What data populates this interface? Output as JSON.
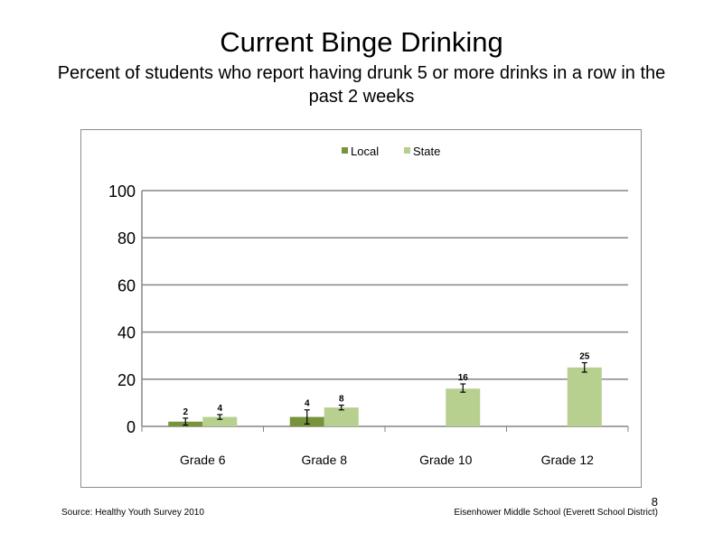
{
  "slide": {
    "title": "Current Binge Drinking",
    "subtitle": "Percent of students who report having drunk  5 or more drinks  in a row in the past 2 weeks",
    "source": "Source: Healthy  Youth Survey 2010",
    "footer": "Eisenhower Middle  School  (Everett School District)",
    "page_number": "8"
  },
  "colors": {
    "local": "#77933c",
    "state": "#b7cf8f",
    "grid": "#868686"
  },
  "chart_data": {
    "type": "bar",
    "categories": [
      "Grade 6",
      "Grade 8",
      "Grade 10",
      "Grade 12"
    ],
    "series": [
      {
        "name": "Local",
        "values": [
          2,
          4,
          null,
          null
        ],
        "labels": [
          "2",
          "4",
          "",
          ""
        ],
        "error_low": [
          0.5,
          1,
          null,
          null
        ],
        "error_high": [
          3.5,
          7,
          null,
          null
        ]
      },
      {
        "name": "State",
        "values": [
          4,
          8,
          16,
          25
        ],
        "labels": [
          "4",
          "8",
          "16",
          "25"
        ],
        "error_low": [
          3,
          7,
          14.5,
          23
        ],
        "error_high": [
          5,
          9,
          18,
          27
        ]
      }
    ],
    "yticks": [
      "0",
      "20",
      "40",
      "60",
      "80",
      "100"
    ],
    "ylim": [
      0,
      100
    ],
    "legend": "top-center",
    "grid": true
  }
}
